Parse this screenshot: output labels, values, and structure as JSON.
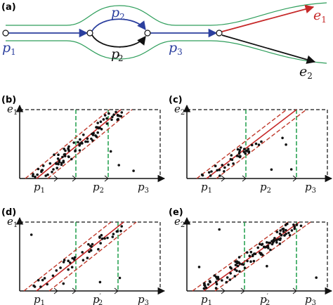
{
  "colors": {
    "blue": "#2b3f9e",
    "red": "#c62828",
    "green": "#2e9e5b",
    "black": "#111111",
    "green_dash": "#1f9e4a",
    "red_dash": "#c0392b"
  },
  "top": {
    "label": "(a)",
    "p1": "p",
    "p1_sub": "1",
    "p2": "p",
    "p2_sub": "2",
    "p2p": "p",
    "p2p_sub": "2",
    "p2p_prime": "′",
    "p3": "p",
    "p3_sub": "3",
    "e1": "e",
    "e1_sub": "1",
    "e2": "e",
    "e2_sub": "2"
  },
  "panels": [
    {
      "label": "(b)",
      "y_label": "e",
      "y_sub": "1",
      "x_labels": [
        {
          "t": "p",
          "s": "1",
          "prime": ""
        },
        {
          "t": "p",
          "s": "2",
          "prime": ""
        },
        {
          "t": "p",
          "s": "3",
          "prime": ""
        }
      ]
    },
    {
      "label": "(c)",
      "y_label": "e",
      "y_sub": "2",
      "x_labels": [
        {
          "t": "p",
          "s": "1",
          "prime": ""
        },
        {
          "t": "p",
          "s": "2",
          "prime": ""
        },
        {
          "t": "p",
          "s": "3",
          "prime": ""
        }
      ]
    },
    {
      "label": "(d)",
      "y_label": "e",
      "y_sub": "1",
      "x_labels": [
        {
          "t": "p",
          "s": "1",
          "prime": ""
        },
        {
          "t": "p",
          "s": "2",
          "prime": "′"
        },
        {
          "t": "p",
          "s": "3",
          "prime": ""
        }
      ]
    },
    {
      "label": "(e)",
      "y_label": "e",
      "y_sub": "2",
      "x_labels": [
        {
          "t": "p",
          "s": "1",
          "prime": ""
        },
        {
          "t": "p",
          "s": "2",
          "prime": "′"
        },
        {
          "t": "p",
          "s": "3",
          "prime": ""
        }
      ]
    }
  ]
}
